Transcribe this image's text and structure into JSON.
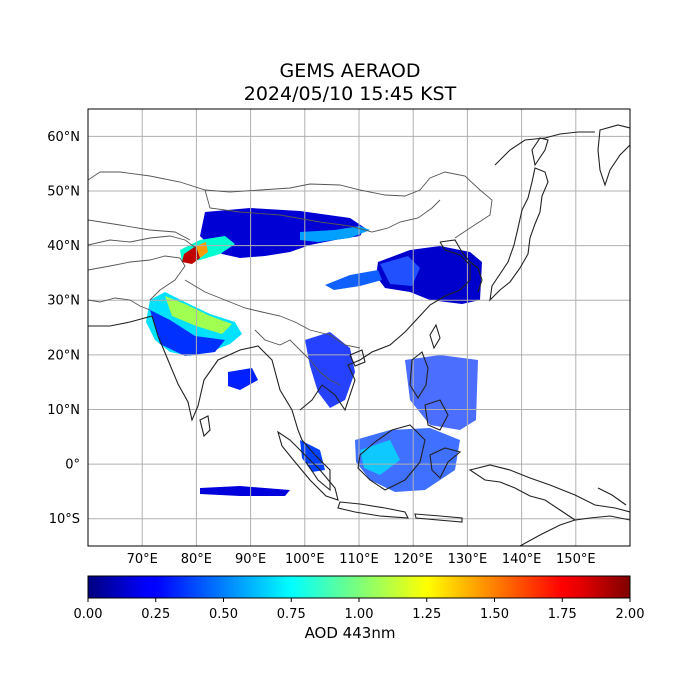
{
  "title_line1": "GEMS AERAOD",
  "title_line2": "2024/05/10 15:45 KST",
  "map": {
    "lon_range": [
      60,
      160
    ],
    "lat_range": [
      -15,
      65
    ],
    "lat_ticks": [
      {
        "value": 60,
        "label": "60°N"
      },
      {
        "value": 50,
        "label": "50°N"
      },
      {
        "value": 40,
        "label": "40°N"
      },
      {
        "value": 30,
        "label": "30°N"
      },
      {
        "value": 20,
        "label": "20°N"
      },
      {
        "value": 10,
        "label": "10°N"
      },
      {
        "value": 0,
        "label": "0°"
      },
      {
        "value": -10,
        "label": "10°S"
      }
    ],
    "lon_ticks": [
      {
        "value": 70,
        "label": "70°E"
      },
      {
        "value": 80,
        "label": "80°E"
      },
      {
        "value": 90,
        "label": "90°E"
      },
      {
        "value": 100,
        "label": "100°E"
      },
      {
        "value": 110,
        "label": "110°E"
      },
      {
        "value": 120,
        "label": "120°E"
      },
      {
        "value": 130,
        "label": "130°E"
      },
      {
        "value": 140,
        "label": "140°E"
      },
      {
        "value": 150,
        "label": "150°E"
      }
    ],
    "gridlines": true
  },
  "colorbar": {
    "label": "AOD 443nm",
    "colormap": "jet",
    "range": [
      0,
      2
    ],
    "ticks": [
      {
        "value": 0.0,
        "label": "0.00"
      },
      {
        "value": 0.25,
        "label": "0.25"
      },
      {
        "value": 0.5,
        "label": "0.50"
      },
      {
        "value": 0.75,
        "label": "0.75"
      },
      {
        "value": 1.0,
        "label": "1.00"
      },
      {
        "value": 1.25,
        "label": "1.25"
      },
      {
        "value": 1.5,
        "label": "1.50"
      },
      {
        "value": 1.75,
        "label": "1.75"
      },
      {
        "value": 2.0,
        "label": "2.00"
      }
    ]
  }
}
